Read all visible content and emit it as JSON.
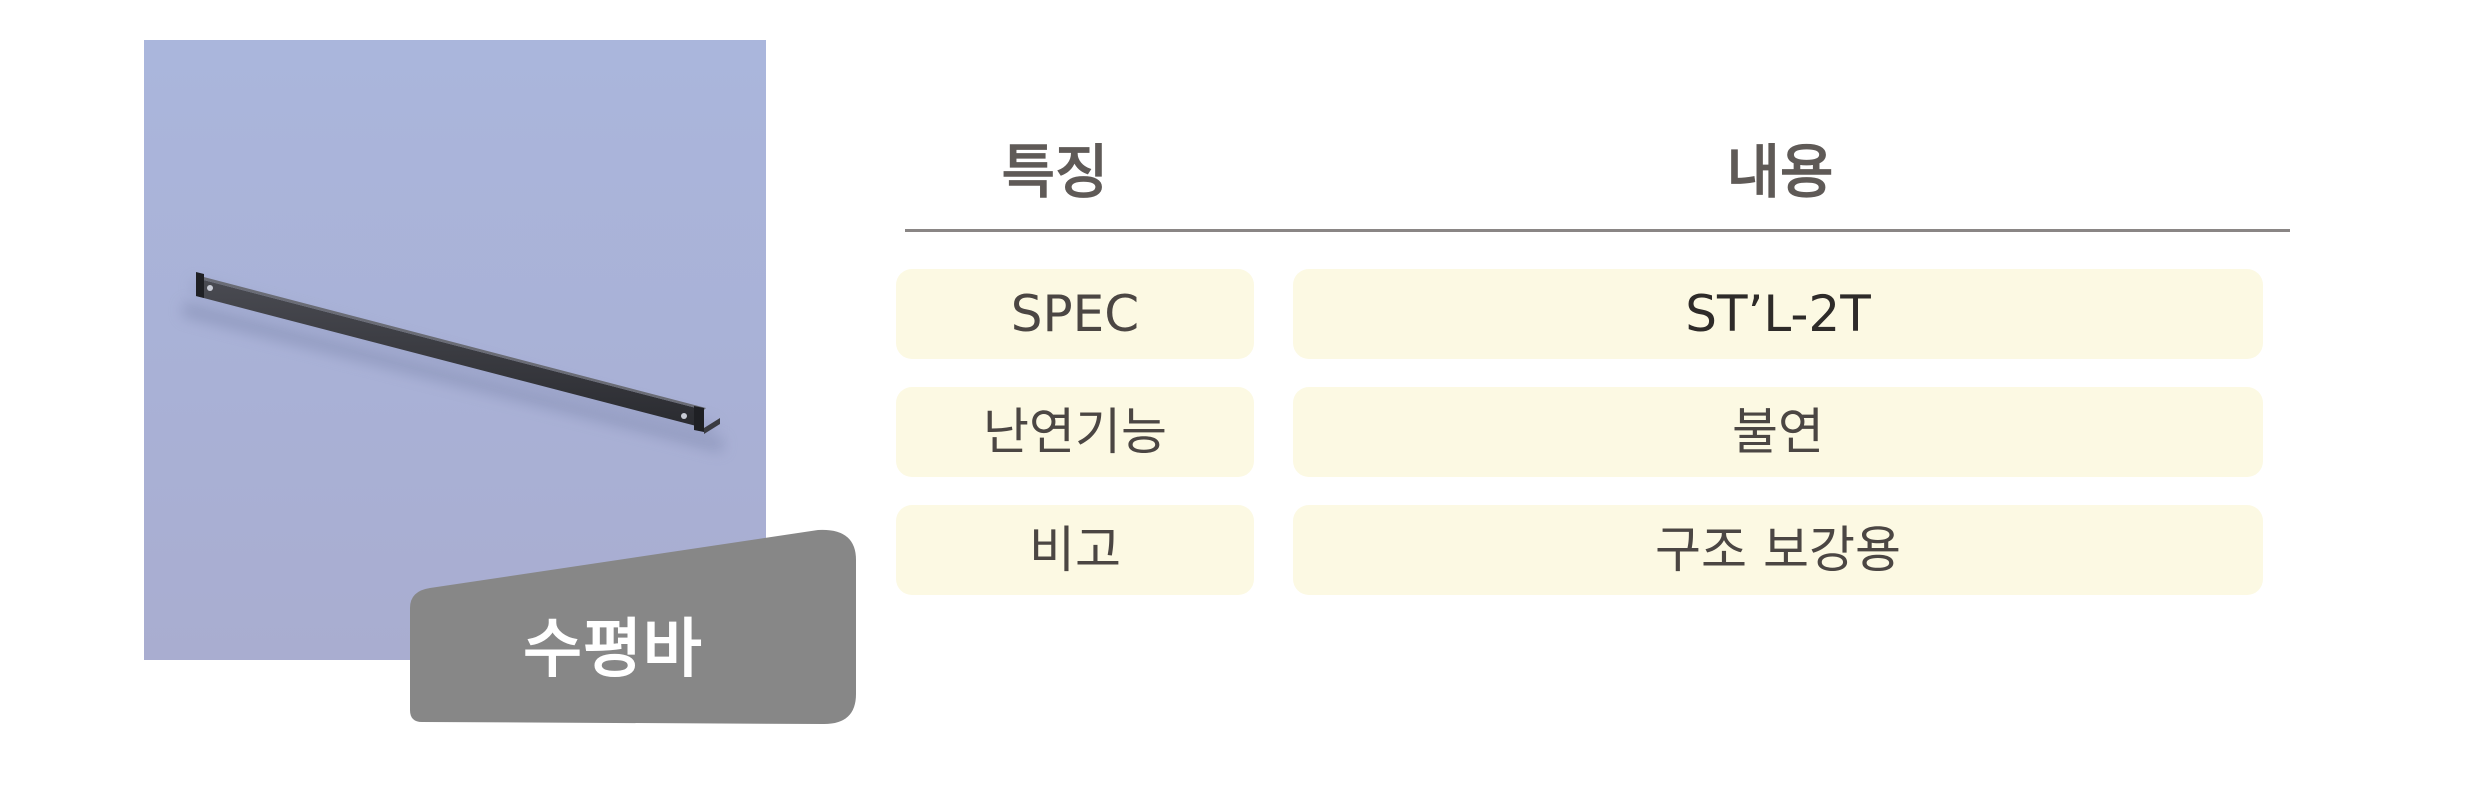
{
  "product": {
    "name": "수평바",
    "image_icon": "horizontal-bar-photo"
  },
  "table": {
    "headers": {
      "feature": "특징",
      "content": "내용"
    },
    "rows": [
      {
        "feature": "SPEC",
        "content": "ST’L-2T"
      },
      {
        "feature": "난연기능",
        "content": "불연"
      },
      {
        "feature": "비고",
        "content": "구조 보강용"
      }
    ]
  },
  "colors": {
    "photo_background": "#aab6dc",
    "tag_background": "#878787",
    "cell_background": "#fcf9e3",
    "header_text": "#5f5a57"
  }
}
